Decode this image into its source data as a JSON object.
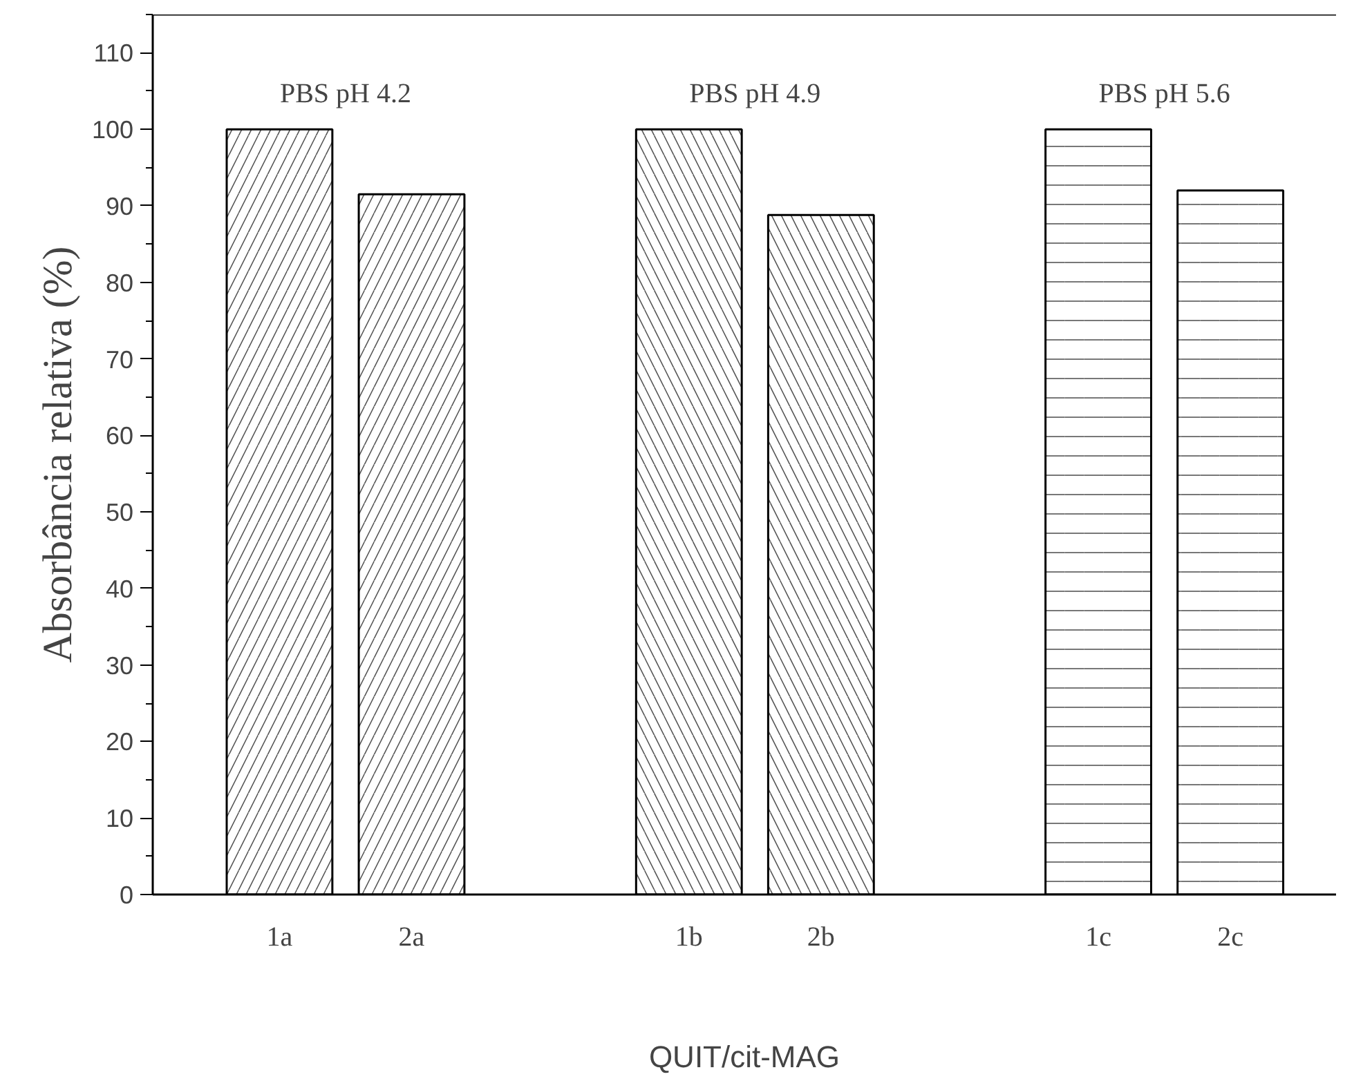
{
  "chart_data": {
    "type": "bar",
    "xlabel": "QUIT/cit-MAG",
    "ylabel": "Absorbância relativa (%)",
    "categories": [
      "1a",
      "2a",
      "1b",
      "2b",
      "1c",
      "2c"
    ],
    "values": [
      100,
      91.5,
      100,
      88.8,
      100,
      92
    ],
    "color": "#ffffff",
    "ylim": [
      0,
      115
    ],
    "yticks": [
      0,
      10,
      20,
      30,
      40,
      50,
      60,
      70,
      80,
      90,
      100,
      110
    ],
    "annotations": [
      "PBS pH 4.2",
      "PBS pH 4.9",
      "PBS pH 5.6"
    ],
    "grid": false
  }
}
